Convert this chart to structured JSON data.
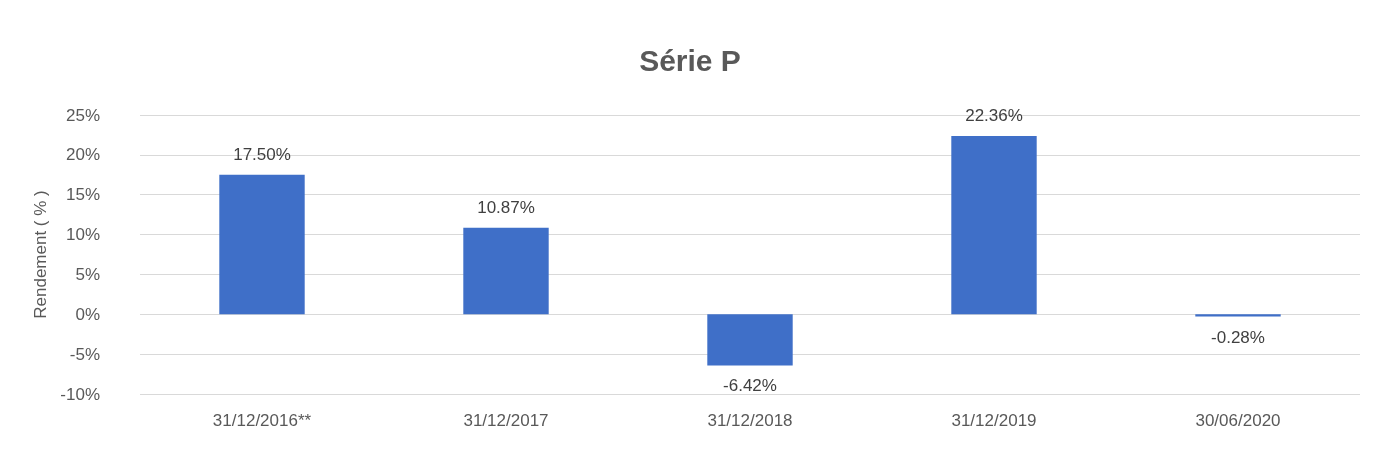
{
  "chart_data": {
    "type": "bar",
    "title": "Série P",
    "ylabel": "Rendement ( % )",
    "categories": [
      "31/12/2016**",
      "31/12/2017",
      "31/12/2018",
      "31/12/2019",
      "30/06/2020"
    ],
    "values": [
      17.5,
      10.87,
      -6.42,
      22.36,
      -0.28
    ],
    "value_labels": [
      "17.50%",
      "10.87%",
      "-6.42%",
      "22.36%",
      "-0.28%"
    ],
    "color": "#3f6fc8",
    "ylim": [
      -10,
      25
    ],
    "yticks": [
      {
        "value": -10,
        "label": "-10%"
      },
      {
        "value": -5,
        "label": "-5%"
      },
      {
        "value": 0,
        "label": "0%"
      },
      {
        "value": 5,
        "label": "5%"
      },
      {
        "value": 10,
        "label": "10%"
      },
      {
        "value": 15,
        "label": "15%"
      },
      {
        "value": 20,
        "label": "20%"
      },
      {
        "value": 25,
        "label": "25%"
      }
    ],
    "grid": "y"
  }
}
